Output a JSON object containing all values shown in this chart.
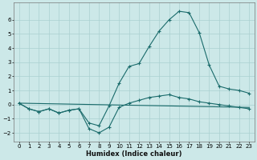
{
  "xlabel": "Humidex (Indice chaleur)",
  "bg_color": "#cce8e8",
  "grid_color": "#aad0d0",
  "line_color": "#1a6b6b",
  "xlim": [
    -0.5,
    23.5
  ],
  "ylim": [
    -2.6,
    7.2
  ],
  "xticks": [
    0,
    1,
    2,
    3,
    4,
    5,
    6,
    7,
    8,
    9,
    10,
    11,
    12,
    13,
    14,
    15,
    16,
    17,
    18,
    19,
    20,
    21,
    22,
    23
  ],
  "yticks": [
    -2,
    -1,
    0,
    1,
    2,
    3,
    4,
    5,
    6
  ],
  "line1_x": [
    0,
    1,
    2,
    3,
    4,
    5,
    6,
    7,
    8,
    9,
    10,
    11,
    12,
    13,
    14,
    15,
    16,
    17,
    18,
    19,
    20,
    21,
    22,
    23
  ],
  "line1_y": [
    0.1,
    -0.3,
    -0.5,
    -0.3,
    -0.6,
    -0.4,
    -0.3,
    -1.3,
    -1.5,
    -0.1,
    1.5,
    2.7,
    2.9,
    4.1,
    5.2,
    6.0,
    6.6,
    6.5,
    5.1,
    2.8,
    1.3,
    1.1,
    1.0,
    0.8
  ],
  "line2_x": [
    0,
    1,
    2,
    3,
    4,
    5,
    6,
    7,
    8,
    9,
    10,
    11,
    12,
    13,
    14,
    15,
    16,
    17,
    18,
    19,
    20,
    21,
    22,
    23
  ],
  "line2_y": [
    0.1,
    -0.3,
    -0.5,
    -0.3,
    -0.6,
    -0.4,
    -0.3,
    -1.7,
    -2.0,
    -1.6,
    -0.2,
    0.1,
    0.3,
    0.5,
    0.6,
    0.7,
    0.5,
    0.4,
    0.2,
    0.1,
    0.0,
    -0.1,
    -0.2,
    -0.3
  ],
  "line3_x": [
    0,
    23
  ],
  "line3_y": [
    0.1,
    -0.2
  ]
}
